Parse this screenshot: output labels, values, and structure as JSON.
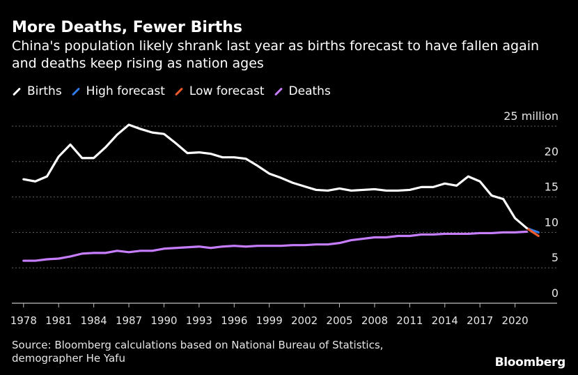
{
  "title": "More Deaths, Fewer Births",
  "subtitle": "China's population likely shrank last year as births forecast to have fallen again and deaths keep rising as nation ages",
  "legend": [
    {
      "label": "Births",
      "color": "#ffffff"
    },
    {
      "label": "High forecast",
      "color": "#2f7be8"
    },
    {
      "label": "Low forecast",
      "color": "#ee5a2c"
    },
    {
      "label": "Deaths",
      "color": "#c77dff"
    }
  ],
  "source": {
    "line1": "Source: Bloomberg calculations based on National Bureau of Statistics,",
    "line2": "demographer He Yafu"
  },
  "brand": "Bloomberg",
  "chart_data": {
    "type": "line",
    "x": [
      1978,
      1979,
      1980,
      1981,
      1982,
      1983,
      1984,
      1985,
      1986,
      1987,
      1988,
      1989,
      1990,
      1991,
      1992,
      1993,
      1994,
      1995,
      1996,
      1997,
      1998,
      1999,
      2000,
      2001,
      2002,
      2003,
      2004,
      2005,
      2006,
      2007,
      2008,
      2009,
      2010,
      2011,
      2012,
      2013,
      2014,
      2015,
      2016,
      2017,
      2018,
      2019,
      2020,
      2021
    ],
    "series": [
      {
        "name": "Births",
        "color": "#ffffff",
        "values": [
          17.5,
          17.2,
          17.9,
          20.7,
          22.4,
          20.5,
          20.5,
          22.0,
          23.8,
          25.2,
          24.6,
          24.1,
          23.9,
          22.6,
          21.2,
          21.3,
          21.1,
          20.6,
          20.6,
          20.4,
          19.4,
          18.3,
          17.7,
          17.0,
          16.5,
          16.0,
          15.9,
          16.2,
          15.9,
          16.0,
          16.1,
          15.9,
          15.9,
          16.0,
          16.4,
          16.4,
          16.9,
          16.6,
          17.9,
          17.2,
          15.2,
          14.7,
          12.0,
          10.6
        ]
      },
      {
        "name": "Deaths",
        "color": "#c77dff",
        "values": [
          6.0,
          6.0,
          6.2,
          6.3,
          6.6,
          7.0,
          7.1,
          7.1,
          7.4,
          7.2,
          7.4,
          7.4,
          7.7,
          7.8,
          7.9,
          8.0,
          7.8,
          8.0,
          8.1,
          8.0,
          8.1,
          8.1,
          8.1,
          8.2,
          8.2,
          8.3,
          8.3,
          8.5,
          8.9,
          9.1,
          9.3,
          9.3,
          9.5,
          9.5,
          9.7,
          9.7,
          9.8,
          9.8,
          9.8,
          9.9,
          9.9,
          10.0,
          10.0,
          10.1
        ]
      }
    ],
    "forecasts": [
      {
        "name": "High forecast",
        "color": "#2f7be8",
        "x": [
          2021,
          2022
        ],
        "values": [
          10.6,
          10.0
        ]
      },
      {
        "name": "Low forecast",
        "color": "#ee5a2c",
        "x": [
          2021,
          2022
        ],
        "values": [
          10.6,
          9.5
        ]
      }
    ],
    "xticks": [
      1978,
      1981,
      1984,
      1987,
      1990,
      1993,
      1996,
      1999,
      2002,
      2005,
      2008,
      2011,
      2014,
      2017,
      2020
    ],
    "xtick_labels": [
      "1978",
      "1981",
      "1984",
      "1987",
      "1990",
      "1993",
      "1996",
      "1999",
      "2002",
      "2005",
      "2008",
      "2011",
      "2014",
      "2017",
      "2020"
    ],
    "yticks": [
      0,
      5,
      10,
      15,
      20,
      25
    ],
    "ytick_labels": [
      "0",
      "5",
      "10",
      "15",
      "20",
      "25 million"
    ],
    "xlim": [
      1977,
      2023
    ],
    "ylim": [
      0,
      25
    ],
    "grid": true
  }
}
